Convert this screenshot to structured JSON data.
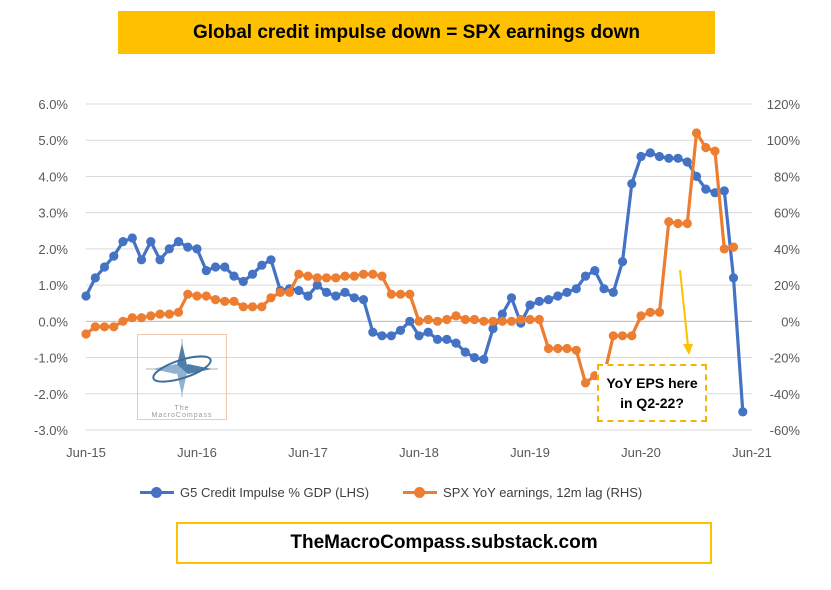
{
  "title": "Global credit impulse down = SPX earnings down",
  "footer": "TheMacroCompass.substack.com",
  "callout": {
    "line1": "YoY EPS here",
    "line2": "in Q2-22?"
  },
  "logo": {
    "line1": "The",
    "line2": "MacroCompass"
  },
  "colors": {
    "blue": "#4472c4",
    "orange": "#ed7d31",
    "accent": "#ffc000",
    "grid": "#d9d9d9",
    "axis_text": "#595959"
  },
  "chart_data": {
    "type": "line",
    "x_tick_labels": [
      "Jun-15",
      "Jun-16",
      "Jun-17",
      "Jun-18",
      "Jun-19",
      "Jun-20",
      "Jun-21"
    ],
    "xlim": [
      "2015-06",
      "2021-06"
    ],
    "y_left": {
      "ticks": [
        "6.0%",
        "5.0%",
        "4.0%",
        "3.0%",
        "2.0%",
        "1.0%",
        "0.0%",
        "-1.0%",
        "-2.0%",
        "-3.0%"
      ],
      "ylim": [
        -3,
        6
      ]
    },
    "y_right": {
      "ticks": [
        "120%",
        "100%",
        "80%",
        "60%",
        "40%",
        "20%",
        "0%",
        "-20%",
        "-40%",
        "-60%"
      ],
      "ylim": [
        -60,
        120
      ]
    },
    "grid": true,
    "legend_position": "bottom",
    "series": [
      {
        "name": "G5 Credit Impulse % GDP (LHS)",
        "axis": "left",
        "color": "#4472c4",
        "start": "2015-06",
        "values": [
          0.7,
          1.2,
          1.5,
          1.8,
          2.2,
          2.3,
          1.7,
          2.2,
          1.7,
          2.0,
          2.2,
          2.05,
          2.0,
          1.4,
          1.5,
          1.5,
          1.25,
          1.1,
          1.3,
          1.55,
          1.7,
          0.85,
          0.9,
          0.85,
          0.7,
          1.0,
          0.8,
          0.7,
          0.8,
          0.65,
          0.6,
          -0.3,
          -0.4,
          -0.4,
          -0.25,
          0.0,
          -0.4,
          -0.3,
          -0.5,
          -0.5,
          -0.6,
          -0.85,
          -1.0,
          -1.05,
          -0.2,
          0.2,
          0.65,
          -0.05,
          0.45,
          0.55,
          0.6,
          0.7,
          0.8,
          0.9,
          1.25,
          1.4,
          0.9,
          0.8,
          1.65,
          3.8,
          4.55,
          4.65,
          4.55,
          4.5,
          4.5,
          4.4,
          4.0,
          3.65,
          3.55,
          3.6,
          1.2,
          -2.5
        ]
      },
      {
        "name": "SPX YoY earnings, 12m lag (RHS)",
        "axis": "right",
        "color": "#ed7d31",
        "start": "2015-06",
        "values": [
          -7,
          -3,
          -3,
          -3,
          0,
          2,
          2,
          3,
          4,
          4,
          5,
          15,
          14,
          14,
          12,
          11,
          11,
          8,
          8,
          8,
          13,
          16,
          16,
          26,
          25,
          24,
          24,
          24,
          25,
          25,
          26,
          26,
          25,
          15,
          15,
          15,
          0,
          1,
          0,
          1,
          3,
          1,
          1,
          0,
          0,
          0,
          0,
          1,
          1,
          1,
          -15,
          -15,
          -15,
          -16,
          -34,
          -30,
          -30,
          -8,
          -8,
          -8,
          3,
          5,
          5,
          55,
          54,
          54,
          104,
          96,
          94,
          40,
          41
        ]
      }
    ]
  }
}
